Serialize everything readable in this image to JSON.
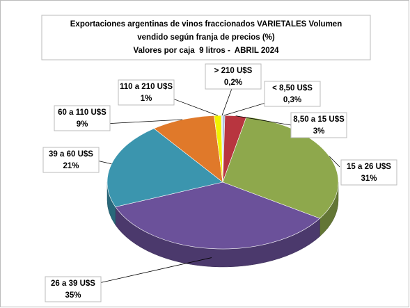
{
  "chart_data": {
    "type": "pie",
    "title": [
      "Exportaciones argentinas de vinos fraccionados VARIETALES Volumen",
      "vendido según franja de precios (%)",
      "Valores por caja  9 litros -  ABRIL 2024"
    ],
    "categories": [
      "< 8,50 U$S",
      "8,50 a 15 U$S",
      "15 a 26 U$S",
      "26 a 39 U$S",
      "39 a 60 U$S",
      "60 a 110 U$S",
      "110 a 210 U$S",
      "> 210 U$S"
    ],
    "values": [
      0.3,
      3,
      31,
      35,
      21,
      9,
      1,
      0.2
    ],
    "value_labels": [
      "0,3%",
      "3%",
      "31%",
      "35%",
      "21%",
      "9%",
      "1%",
      "0,2%"
    ],
    "colors": [
      "#9bb7d4",
      "#b8353f",
      "#8ea84c",
      "#6b519a",
      "#3b95ae",
      "#e0792a",
      "#f2f200",
      "#d9e4f1"
    ]
  }
}
